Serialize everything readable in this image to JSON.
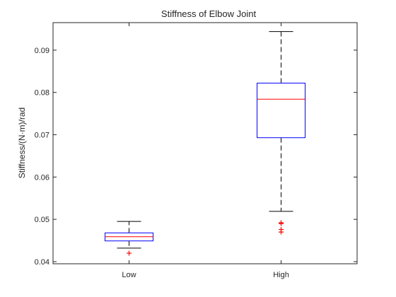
{
  "chart_data": {
    "type": "box",
    "title": "Stiffness of Elbow Joint",
    "xlabel": "",
    "ylabel": "Stiffness/(N·m)/rad",
    "ylim": [
      0.0395,
      0.0965
    ],
    "yticks": [
      0.04,
      0.05,
      0.06,
      0.07,
      0.08,
      0.09
    ],
    "ytick_labels": [
      "0.04",
      "0.05",
      "0.06",
      "0.07",
      "0.08",
      "0.09"
    ],
    "categories": [
      "Low",
      "High"
    ],
    "boxes": [
      {
        "category": "Low",
        "whisker_low": 0.0432,
        "q1": 0.0449,
        "median": 0.0459,
        "q3": 0.0468,
        "whisker_high": 0.0495,
        "outliers": [
          0.042
        ]
      },
      {
        "category": "High",
        "whisker_low": 0.0519,
        "q1": 0.0693,
        "median": 0.0784,
        "q3": 0.0822,
        "whisker_high": 0.0944,
        "outliers": [
          0.0492,
          0.049,
          0.0476,
          0.047
        ]
      }
    ],
    "grid": false,
    "colors": {
      "box": "#0000ff",
      "median": "#ff0000",
      "outlier": "#ff0000",
      "whisker": "#000000",
      "axis": "#262626"
    }
  }
}
